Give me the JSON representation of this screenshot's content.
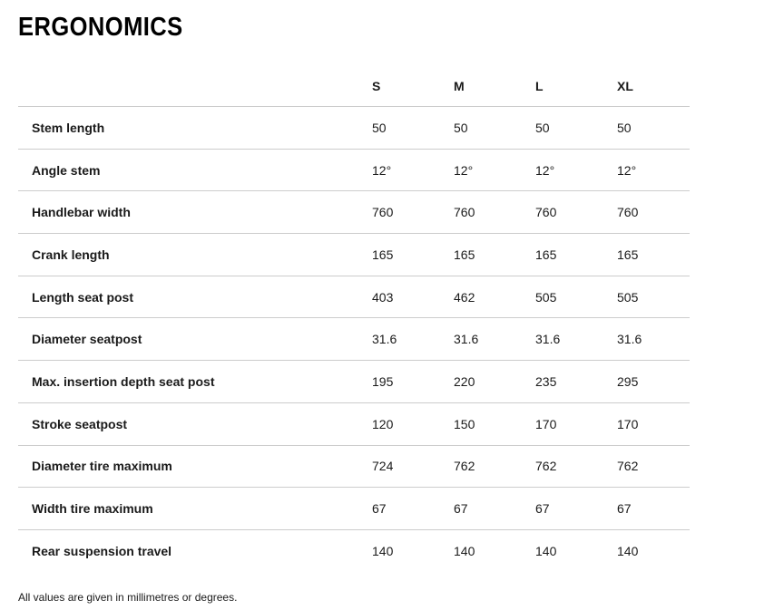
{
  "page": {
    "title": "ERGONOMICS",
    "footnote": "All values are given in millimetres or degrees."
  },
  "table": {
    "columns": [
      "S",
      "M",
      "L",
      "XL"
    ],
    "rows": [
      {
        "label": "Stem length",
        "values": [
          "50",
          "50",
          "50",
          "50"
        ]
      },
      {
        "label": "Angle stem",
        "values": [
          "12°",
          "12°",
          "12°",
          "12°"
        ]
      },
      {
        "label": "Handlebar width",
        "values": [
          "760",
          "760",
          "760",
          "760"
        ]
      },
      {
        "label": "Crank length",
        "values": [
          "165",
          "165",
          "165",
          "165"
        ]
      },
      {
        "label": "Length seat post",
        "values": [
          "403",
          "462",
          "505",
          "505"
        ]
      },
      {
        "label": "Diameter seatpost",
        "values": [
          "31.6",
          "31.6",
          "31.6",
          "31.6"
        ]
      },
      {
        "label": "Max. insertion depth seat post",
        "values": [
          "195",
          "220",
          "235",
          "295"
        ]
      },
      {
        "label": "Stroke seatpost",
        "values": [
          "120",
          "150",
          "170",
          "170"
        ]
      },
      {
        "label": "Diameter tire maximum",
        "values": [
          "724",
          "762",
          "762",
          "762"
        ]
      },
      {
        "label": "Width tire maximum",
        "values": [
          "67",
          "67",
          "67",
          "67"
        ]
      },
      {
        "label": "Rear suspension travel",
        "values": [
          "140",
          "140",
          "140",
          "140"
        ]
      }
    ]
  },
  "colors": {
    "background": "#ffffff",
    "text": "#1a1a1a",
    "title": "#000000",
    "divider": "#cccccc"
  }
}
